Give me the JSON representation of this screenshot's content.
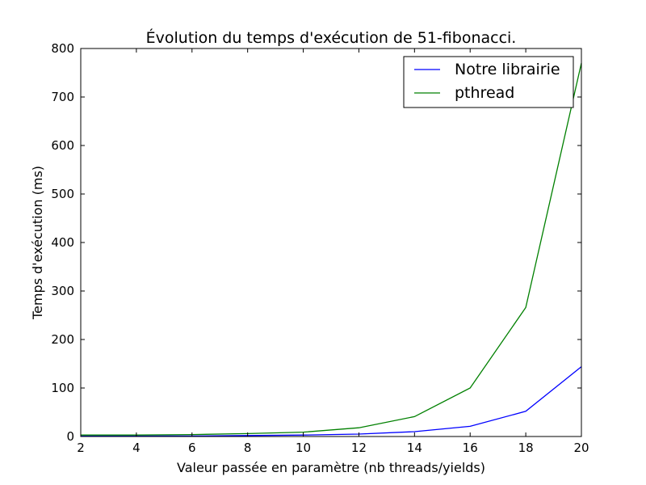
{
  "chart_data": {
    "type": "line",
    "title": "Évolution du temps d'exécution de 51-fibonacci.",
    "xlabel": "Valeur passée en paramètre (nb threads/yields)",
    "ylabel": "Temps d'exécution (ms)",
    "xlim": [
      2,
      20
    ],
    "ylim": [
      0,
      800
    ],
    "xticks": [
      2,
      4,
      6,
      8,
      10,
      12,
      14,
      16,
      18,
      20
    ],
    "yticks": [
      0,
      100,
      200,
      300,
      400,
      500,
      600,
      700,
      800
    ],
    "grid": false,
    "legend_position": "top-right",
    "x": [
      2,
      4,
      6,
      8,
      10,
      12,
      14,
      16,
      18,
      20
    ],
    "series": [
      {
        "name": "Notre librairie",
        "color": "#0000ff",
        "values": [
          1,
          1,
          1,
          2,
          3,
          5,
          10,
          21,
          52,
          144
        ]
      },
      {
        "name": "pthread",
        "color": "#008000",
        "values": [
          3,
          3,
          4,
          6,
          9,
          18,
          41,
          100,
          266,
          770
        ]
      }
    ]
  }
}
